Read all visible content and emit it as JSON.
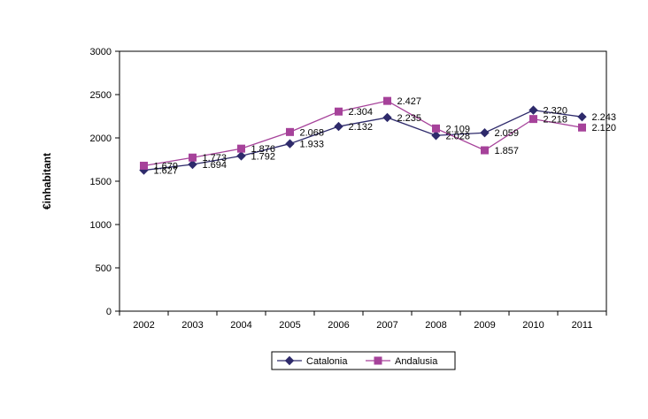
{
  "chart_data": {
    "type": "line",
    "title": "",
    "xlabel": "",
    "ylabel": "€inhabitant",
    "categories": [
      "2002",
      "2003",
      "2004",
      "2005",
      "2006",
      "2007",
      "2008",
      "2009",
      "2010",
      "2011"
    ],
    "ylim": [
      0,
      3000
    ],
    "yticks": [
      "0",
      "500",
      "1000",
      "1500",
      "2000",
      "2500",
      "3000"
    ],
    "grid": false,
    "legend_position": "bottom-center",
    "series": [
      {
        "name": "Catalonia",
        "color": "#2e2a6b",
        "marker": "diamond",
        "values": [
          1627,
          1694,
          1792,
          1933,
          2132,
          2235,
          2028,
          2059,
          2320,
          2243
        ],
        "labels": [
          "1.627",
          "1.694",
          "1.792",
          "1.933",
          "2.132",
          "2.235",
          "2.028",
          "2.059",
          "2.320",
          "2.243"
        ]
      },
      {
        "name": "Andalusia",
        "color": "#a6429a",
        "marker": "square",
        "values": [
          1679,
          1773,
          1876,
          2068,
          2304,
          2427,
          2109,
          1857,
          2218,
          2120
        ],
        "labels": [
          "1.679",
          "1.773",
          "1.876",
          "2.068",
          "2.304",
          "2.427",
          "2.109",
          "1.857",
          "2.218",
          "2.120"
        ]
      }
    ]
  }
}
